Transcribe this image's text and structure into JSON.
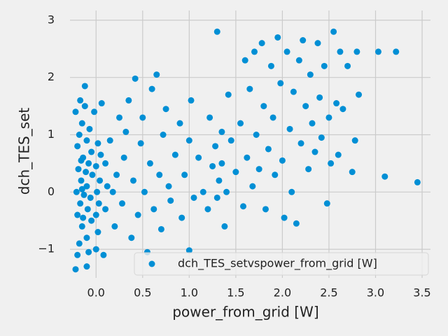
{
  "chart_data": {
    "type": "scatter",
    "xlabel": "power_from_grid [W]",
    "ylabel": "dch_TES_set",
    "xlim": [
      -0.28,
      3.59
    ],
    "ylim": [
      -1.5,
      3.17
    ],
    "xticks": [
      {
        "value": 0,
        "label": "0.0"
      },
      0.5,
      {
        "value": 1,
        "label": "1.0"
      },
      1.5,
      {
        "value": 2,
        "label": "2.0"
      },
      2.5,
      {
        "value": 3,
        "label": "3.0"
      },
      3.5
    ],
    "yticks": [
      {
        "value": -1,
        "label": "−1"
      },
      0,
      1,
      2,
      3
    ],
    "grid": true,
    "legend": "lower right",
    "x": [
      -0.22,
      -0.2,
      -0.18,
      -0.15,
      -0.2,
      -0.17,
      -0.21,
      -0.16,
      -0.19,
      -0.14,
      -0.2,
      -0.18,
      -0.15,
      -0.22,
      -0.17,
      -0.12,
      -0.1,
      -0.08,
      -0.1,
      -0.05,
      -0.09,
      -0.06,
      -0.1,
      -0.04,
      -0.08,
      -0.05,
      -0.1,
      -0.07,
      -0.12,
      -0.02,
      0,
      0.02,
      0,
      0.03,
      0.01,
      0.04,
      0,
      0.05,
      0.02,
      0.06,
      -0.13,
      -0.15,
      -0.11,
      -0.14,
      -0.16,
      0.08,
      0.1,
      0.12,
      0.1,
      0.15,
      0.2,
      0.22,
      0.25,
      0.18,
      0.28,
      0.3,
      0.32,
      0.35,
      0.38,
      0.4,
      0.42,
      0.45,
      0.48,
      0.5,
      0.52,
      0.55,
      0.58,
      0.6,
      0.62,
      0.65,
      0.68,
      0.7,
      0.72,
      0.75,
      0.78,
      0.8,
      0.85,
      0.9,
      0.92,
      0.95,
      1.0,
      1.0,
      1.02,
      1.05,
      1.1,
      1.15,
      1.2,
      1.22,
      1.25,
      1.28,
      1.3,
      1.3,
      1.32,
      1.35,
      1.35,
      1.38,
      1.4,
      1.42,
      1.45,
      1.5,
      1.55,
      1.58,
      1.6,
      1.62,
      1.65,
      1.68,
      1.7,
      1.72,
      1.75,
      1.78,
      1.8,
      1.82,
      1.85,
      1.88,
      1.9,
      1.92,
      1.95,
      1.98,
      2.0,
      2.02,
      2.05,
      2.08,
      2.1,
      2.12,
      2.15,
      2.18,
      2.2,
      2.22,
      2.25,
      2.28,
      2.3,
      2.32,
      2.35,
      2.38,
      2.4,
      2.42,
      2.45,
      2.48,
      2.5,
      2.52,
      2.55,
      2.58,
      2.6,
      2.62,
      2.65,
      2.7,
      2.75,
      2.78,
      2.82,
      2.8,
      3.03,
      3.1,
      3.22,
      3.45
    ],
    "series": [
      {
        "name": "dch_TES_setvspower_from_grid [W]",
        "color": "#008fd5",
        "values": [
          -1.35,
          -1.1,
          -0.9,
          -0.6,
          -0.4,
          -0.2,
          0,
          0.2,
          0.4,
          0.6,
          0.8,
          1.0,
          1.2,
          1.4,
          1.6,
          1.85,
          -1.3,
          -1.05,
          -0.8,
          -0.5,
          -0.3,
          -0.1,
          0.1,
          0.3,
          0.5,
          0.7,
          0.9,
          1.1,
          1.5,
          1.4,
          -1,
          -0.7,
          -0.4,
          -0.2,
          0,
          0.2,
          0.45,
          0.65,
          0.85,
          1.55,
          -0.05,
          0.05,
          0.35,
          -0.45,
          0.55,
          -1.1,
          -0.3,
          0.1,
          0.5,
          0.9,
          -0.6,
          0.3,
          1.3,
          0,
          -0.2,
          0.6,
          1.05,
          1.6,
          -0.8,
          0.2,
          1.98,
          -0.4,
          0.85,
          1.3,
          0,
          -1.05,
          0.5,
          1.8,
          -0.3,
          2.05,
          0.3,
          -0.65,
          1.0,
          1.45,
          0.1,
          -0.15,
          0.65,
          1.2,
          -0.45,
          0.3,
          -1.02,
          0.9,
          1.6,
          -0.1,
          0.6,
          0,
          -0.3,
          1.3,
          0.45,
          0.8,
          2.8,
          -0.1,
          0.2,
          0.5,
          1.05,
          -0.6,
          0,
          1.7,
          0.9,
          0.35,
          1.2,
          -0.25,
          2.3,
          0.6,
          1.8,
          0.1,
          2.45,
          1.0,
          0.4,
          2.6,
          1.5,
          -0.3,
          0.75,
          2.2,
          1.3,
          0.3,
          2.7,
          1.9,
          0.55,
          -0.45,
          2.45,
          1.1,
          0,
          1.75,
          -0.55,
          2.3,
          0.85,
          2.65,
          1.5,
          0.4,
          2.05,
          1.2,
          0.7,
          2.6,
          1.65,
          0.95,
          2.2,
          -0.2,
          1.3,
          0.5,
          2.8,
          1.55,
          0.65,
          2.45,
          1.45,
          2.2,
          0.35,
          0.9,
          1.7,
          2.45,
          2.45,
          0.27,
          2.45,
          0.17
        ]
      }
    ]
  }
}
